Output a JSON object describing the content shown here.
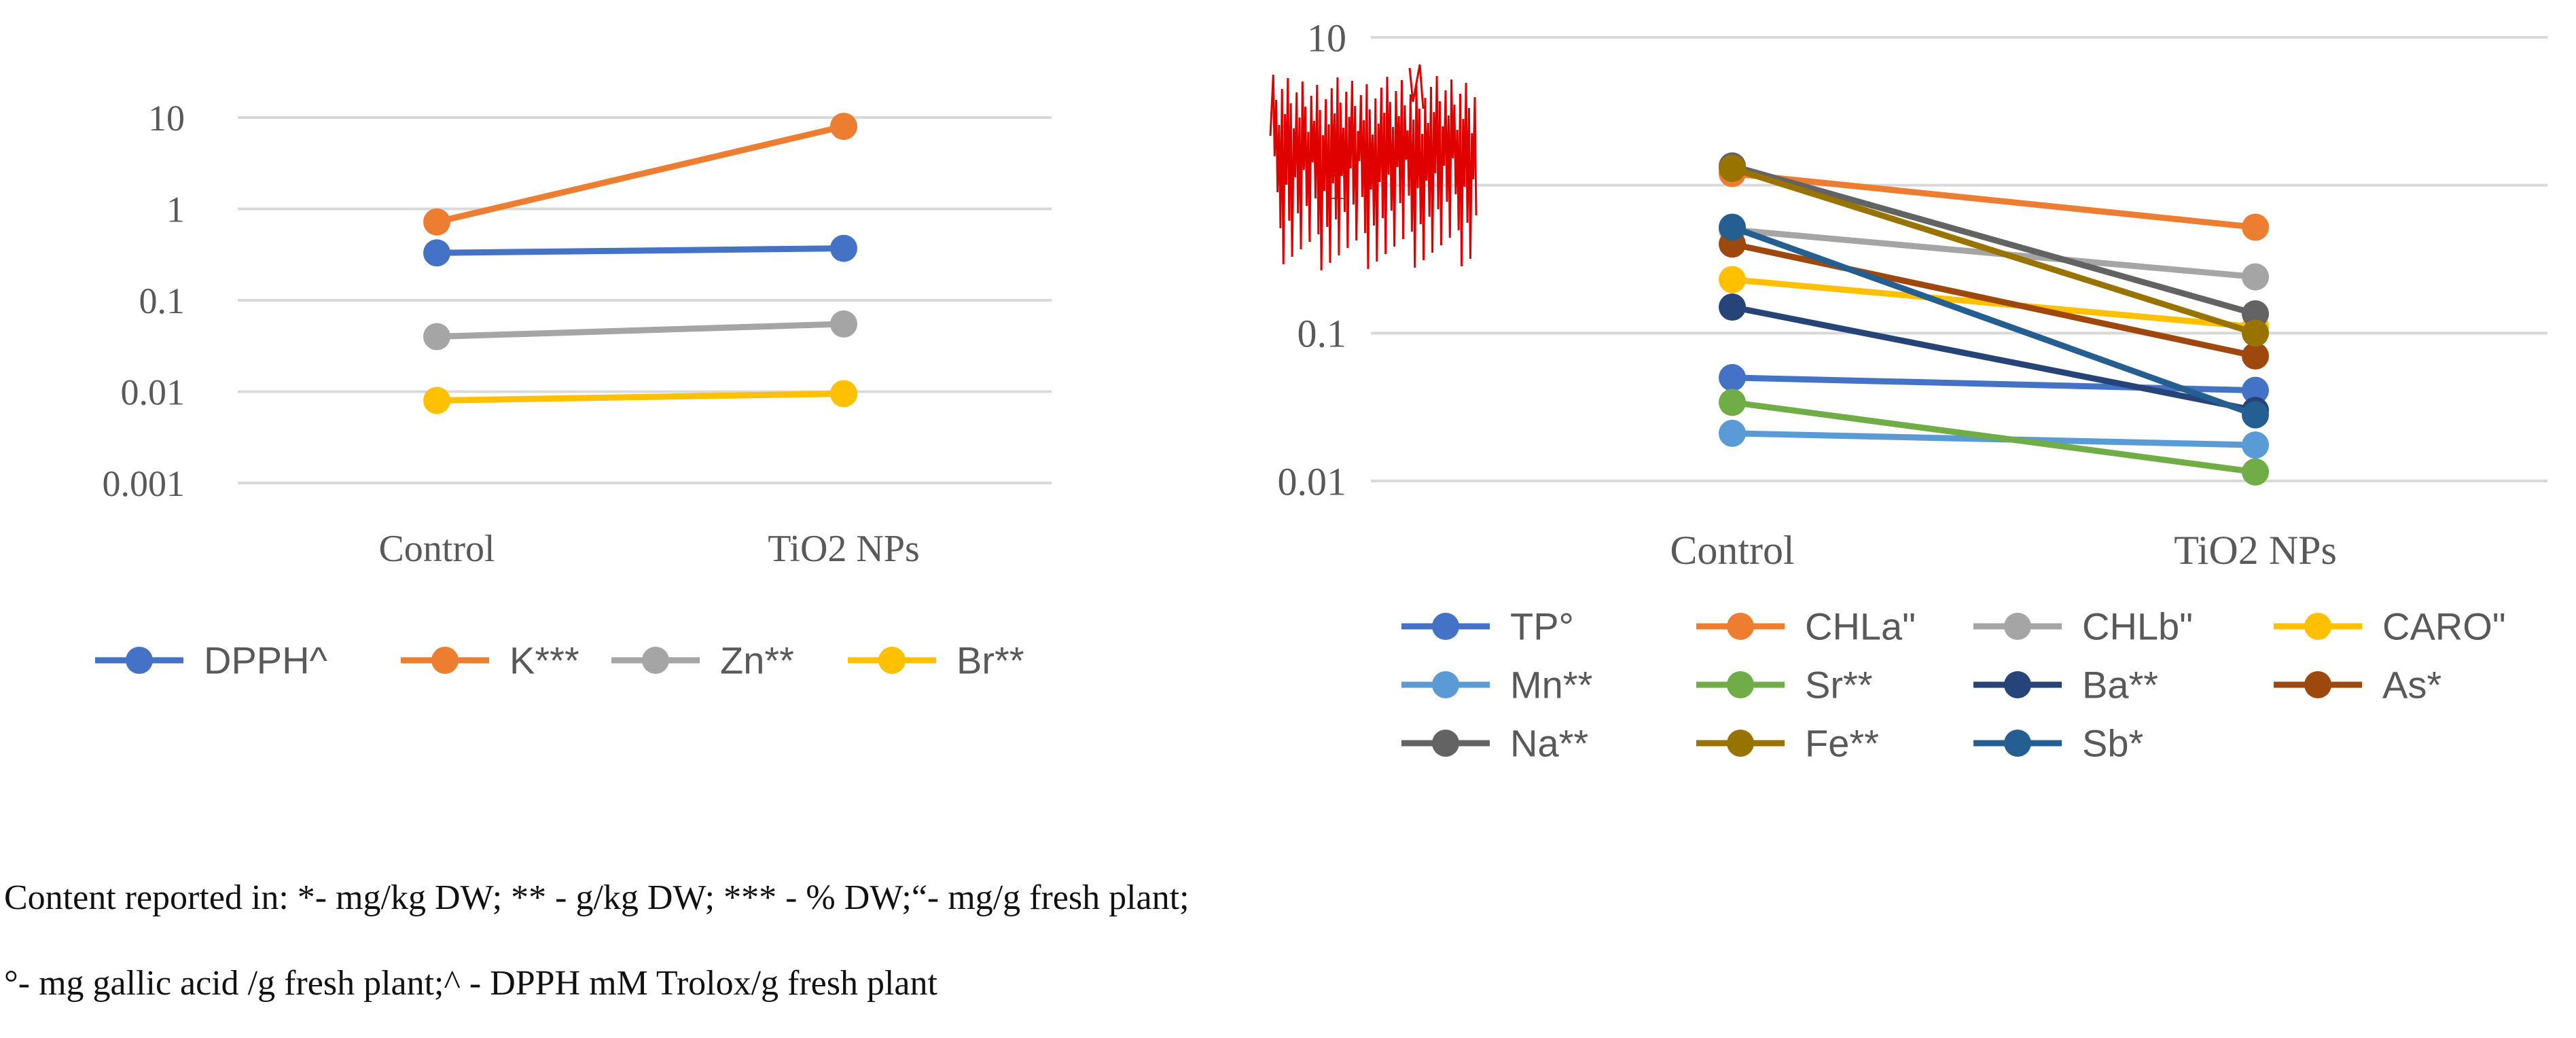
{
  "colors": {
    "gridline": "#d9d9d9",
    "tick_text": "#595959",
    "legend_text": "#595959",
    "overlay_red": "#e00000"
  },
  "chart_data": [
    {
      "type": "line",
      "yscale": "log",
      "categories": [
        "Control",
        "TiO2 NPs"
      ],
      "ylim": [
        0.001,
        10
      ],
      "yticks": [
        0.001,
        0.01,
        0.1,
        1,
        10
      ],
      "ytick_labels": [
        "0.001",
        "0.01",
        "0.1",
        "1",
        "10"
      ],
      "grid": true,
      "legend_position": "bottom",
      "series": [
        {
          "name": "DPPH^",
          "color": "#4472C4",
          "values": [
            0.33,
            0.37
          ]
        },
        {
          "name": "K***",
          "color": "#ED7D31",
          "values": [
            0.72,
            8.0
          ]
        },
        {
          "name": "Zn**",
          "color": "#A5A5A5",
          "values": [
            0.04,
            0.055
          ]
        },
        {
          "name": "Br**",
          "color": "#FFC000",
          "values": [
            0.008,
            0.0095
          ]
        }
      ]
    },
    {
      "type": "line",
      "yscale": "log",
      "categories": [
        "Control",
        "TiO2 NPs"
      ],
      "ylim": [
        0.01,
        10
      ],
      "yticks": [
        0.01,
        0.1,
        1,
        10
      ],
      "ytick_labels": [
        "0.01",
        "0.1",
        "1",
        "10"
      ],
      "grid": true,
      "legend_position": "bottom",
      "series": [
        {
          "name": "TP°",
          "color": "#4472C4",
          "values": [
            0.05,
            0.041
          ]
        },
        {
          "name": "CHLa\"",
          "color": "#ED7D31",
          "values": [
            1.2,
            0.52
          ]
        },
        {
          "name": "CHLb\"",
          "color": "#A5A5A5",
          "values": [
            0.5,
            0.24
          ]
        },
        {
          "name": "CARO\"",
          "color": "#FFC000",
          "values": [
            0.23,
            0.11
          ]
        },
        {
          "name": "Mn**",
          "color": "#5B9BD5",
          "values": [
            0.021,
            0.0175
          ]
        },
        {
          "name": "Sr**",
          "color": "#70AD47",
          "values": [
            0.034,
            0.0115
          ]
        },
        {
          "name": "Ba**",
          "color": "#264478",
          "values": [
            0.15,
            0.03
          ]
        },
        {
          "name": "As*",
          "color": "#9E480E",
          "values": [
            0.4,
            0.07
          ]
        },
        {
          "name": "Na**",
          "color": "#636363",
          "values": [
            1.35,
            0.135
          ]
        },
        {
          "name": "Fe**",
          "color": "#997300",
          "values": [
            1.3,
            0.1
          ]
        },
        {
          "name": "Sb*",
          "color": "#255E91",
          "values": [
            0.52,
            0.028
          ]
        }
      ]
    }
  ],
  "notes": {
    "line1": "Content reported in: *- mg/kg DW; ** - g/kg DW; *** - % DW;“- mg/g fresh plant;",
    "line2": "°- mg gallic acid /g fresh plant;^ - DPPH mM Trolox/g fresh plant"
  }
}
